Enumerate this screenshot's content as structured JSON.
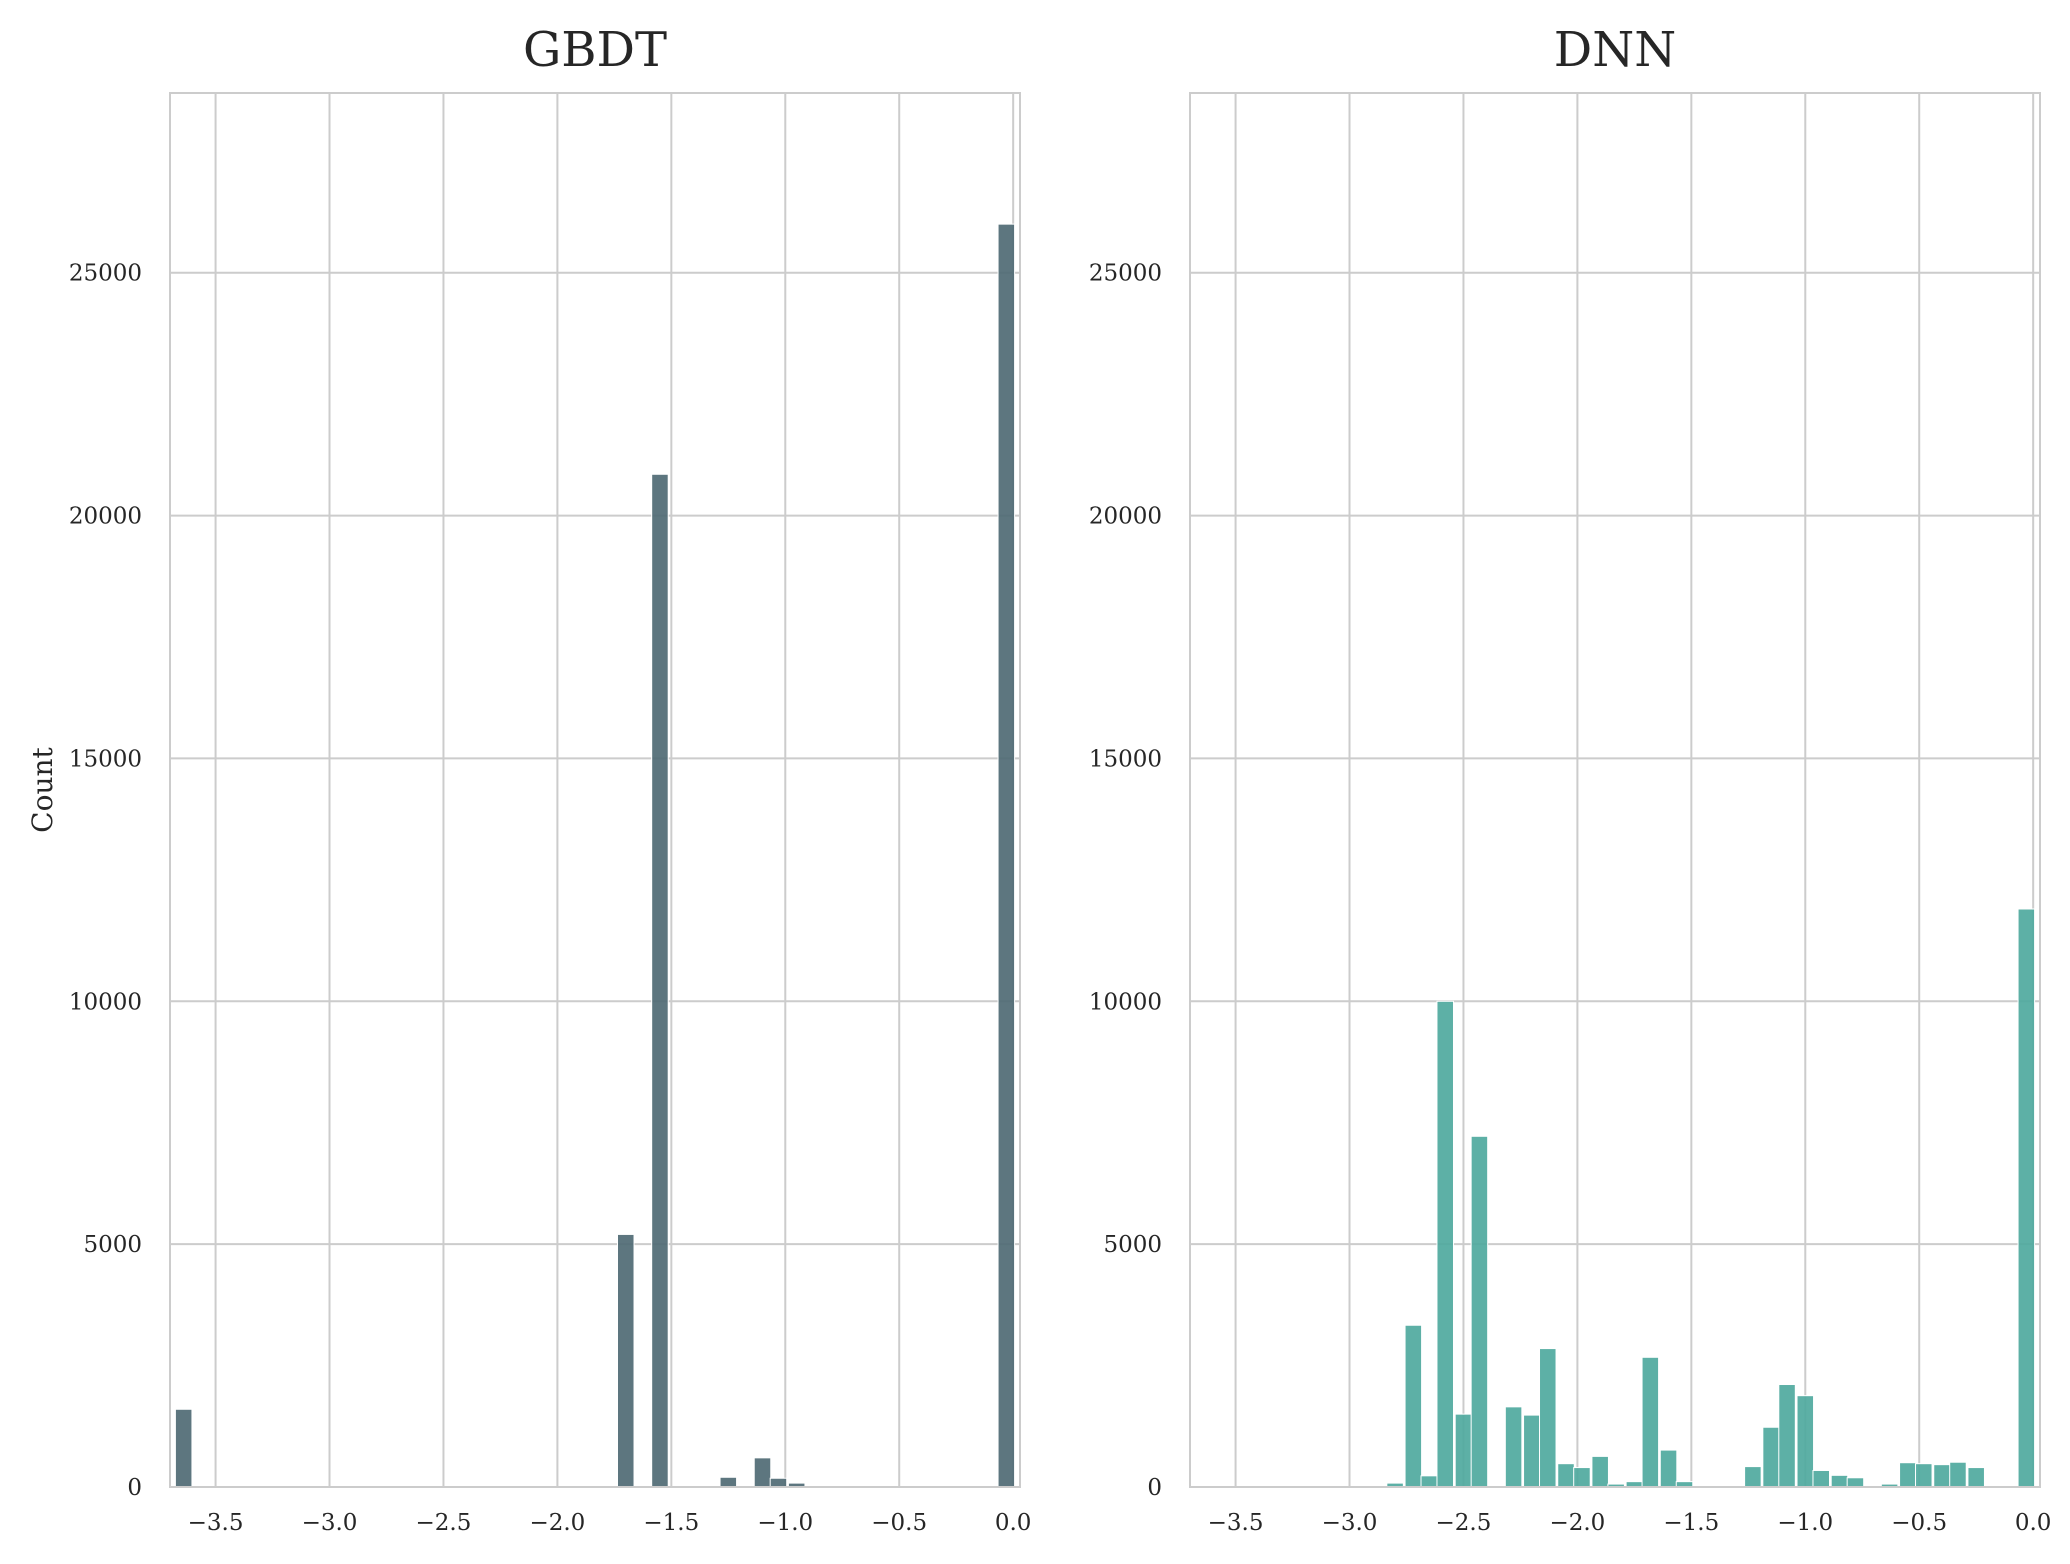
{
  "chart_data": [
    {
      "type": "bar",
      "title": "GBDT",
      "xlabel": "",
      "ylabel": "Count",
      "xlim": [
        -3.7,
        0.03
      ],
      "ylim": [
        0,
        28700
      ],
      "xticks": [
        -3.5,
        -3.0,
        -2.5,
        -2.0,
        -1.5,
        -1.0,
        -0.5,
        0.0
      ],
      "xtick_labels": [
        "−3.5",
        "−3.0",
        "−2.5",
        "−2.0",
        "−1.5",
        "−1.0",
        "−0.5",
        "0.0"
      ],
      "yticks": [
        0,
        5000,
        10000,
        15000,
        20000,
        25000
      ],
      "ytick_labels": [
        "0",
        "5000",
        "10000",
        "15000",
        "20000",
        "25000"
      ],
      "grid": true,
      "color": "#4f6a74",
      "bin_width": 0.0725,
      "x": [
        -3.64,
        -3.2,
        -1.7,
        -1.55,
        -1.25,
        -1.1,
        -1.03,
        -0.95,
        -0.03
      ],
      "values": [
        1600,
        30,
        5200,
        20850,
        200,
        600,
        180,
        80,
        26000
      ]
    },
    {
      "type": "bar",
      "title": "DNN",
      "xlabel": "",
      "ylabel": "",
      "xlim": [
        -3.7,
        0.03
      ],
      "ylim": [
        0,
        28700
      ],
      "xticks": [
        -3.5,
        -3.0,
        -2.5,
        -2.0,
        -1.5,
        -1.0,
        -0.5,
        0.0
      ],
      "xtick_labels": [
        "−3.5",
        "−3.0",
        "−2.5",
        "−2.0",
        "−1.5",
        "−1.0",
        "−0.5",
        "0.0"
      ],
      "yticks": [
        0,
        5000,
        10000,
        15000,
        20000,
        25000
      ],
      "ytick_labels": [
        "0",
        "5000",
        "10000",
        "15000",
        "20000",
        "25000"
      ],
      "grid": true,
      "color": "#4fa99e",
      "bin_width": 0.0725,
      "x": [
        -2.8,
        -2.72,
        -2.65,
        -2.58,
        -2.5,
        -2.43,
        -2.28,
        -2.2,
        -2.13,
        -2.05,
        -1.98,
        -1.9,
        -1.83,
        -1.75,
        -1.68,
        -1.6,
        -1.53,
        -1.23,
        -1.15,
        -1.08,
        -1.0,
        -0.93,
        -0.85,
        -0.78,
        -0.63,
        -0.55,
        -0.48,
        -0.4,
        -0.33,
        -0.25,
        -0.03
      ],
      "values": [
        80,
        3330,
        230,
        10000,
        1500,
        7220,
        1650,
        1480,
        2850,
        480,
        400,
        630,
        60,
        110,
        2670,
        760,
        110,
        420,
        1230,
        2110,
        1880,
        340,
        240,
        190,
        60,
        500,
        480,
        460,
        510,
        400,
        11900
      ]
    }
  ]
}
